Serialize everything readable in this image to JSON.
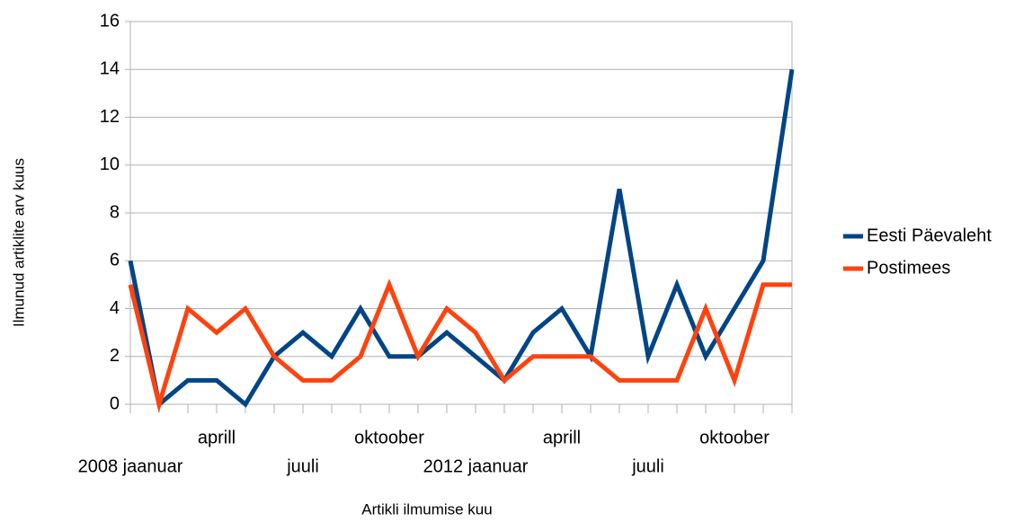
{
  "chart_data": {
    "type": "line",
    "xlabel": "Artikli ilmumise kuu",
    "ylabel": "Ilmunud artiklite arv kuus",
    "categories": [
      "2008 jaanuar",
      null,
      null,
      "aprill",
      null,
      null,
      "juuli",
      null,
      null,
      "oktoober",
      null,
      null,
      "2012 jaanuar",
      null,
      null,
      "aprill",
      null,
      null,
      "juuli",
      null,
      null,
      "oktoober",
      null,
      null
    ],
    "series": [
      {
        "name": "Eesti Päevaleht",
        "color": "#004586",
        "values": [
          6,
          0,
          1,
          1,
          0,
          2,
          3,
          2,
          4,
          2,
          2,
          3,
          2,
          1,
          3,
          4,
          2,
          9,
          2,
          5,
          2,
          4,
          6,
          14
        ]
      },
      {
        "name": "Postimees",
        "color": "#ff420e",
        "values": [
          5,
          0,
          4,
          3,
          4,
          2,
          1,
          1,
          2,
          5,
          2,
          4,
          3,
          1,
          2,
          2,
          2,
          1,
          1,
          1,
          4,
          1,
          5,
          5
        ]
      }
    ],
    "ylim": [
      0,
      16
    ],
    "yticks": [
      0,
      2,
      4,
      6,
      8,
      10,
      12,
      14,
      16
    ],
    "grid": true,
    "legend": "right"
  }
}
